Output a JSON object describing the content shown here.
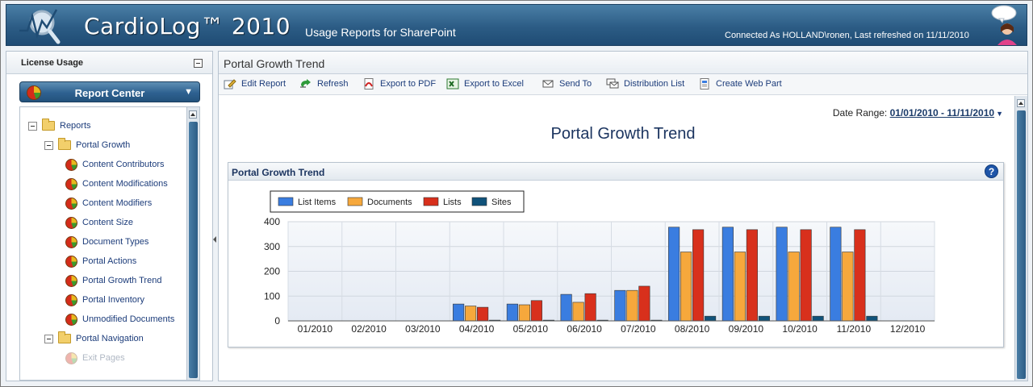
{
  "header": {
    "app_title": "CardioLog™ 2010",
    "subtitle": "Usage Reports for SharePoint",
    "connection": "Connected As HOLLAND\\ronen, Last refreshed on 11/11/2010"
  },
  "sidebar": {
    "license_label": "License Usage",
    "report_center_label": "Report Center",
    "tree": [
      {
        "label": "Reports",
        "type": "folder",
        "level": 0
      },
      {
        "label": "Portal Growth",
        "type": "folder",
        "level": 1
      },
      {
        "label": "Content Contributors",
        "type": "report",
        "level": 2
      },
      {
        "label": "Content Modifications",
        "type": "report",
        "level": 2
      },
      {
        "label": "Content Modifiers",
        "type": "report",
        "level": 2
      },
      {
        "label": "Content Size",
        "type": "report",
        "level": 2
      },
      {
        "label": "Document Types",
        "type": "report",
        "level": 2
      },
      {
        "label": "Portal Actions",
        "type": "report",
        "level": 2
      },
      {
        "label": "Portal Growth Trend",
        "type": "report",
        "level": 2
      },
      {
        "label": "Portal Inventory",
        "type": "report",
        "level": 2
      },
      {
        "label": "Unmodified Documents",
        "type": "report",
        "level": 2
      },
      {
        "label": "Portal Navigation",
        "type": "folder",
        "level": 1
      },
      {
        "label": "Exit Pages",
        "type": "report",
        "level": 2,
        "faded": true
      }
    ]
  },
  "main": {
    "panel_title": "Portal Growth Trend",
    "toolbar": [
      {
        "label": "Edit Report",
        "icon": "edit-report-icon"
      },
      {
        "label": "Refresh",
        "icon": "refresh-icon"
      },
      {
        "label": "Export to PDF",
        "icon": "pdf-icon"
      },
      {
        "label": "Export to Excel",
        "icon": "excel-icon"
      },
      {
        "label": "Send To",
        "icon": "envelope-icon"
      },
      {
        "label": "Distribution List",
        "icon": "distribution-list-icon"
      },
      {
        "label": "Create Web Part",
        "icon": "web-part-icon"
      }
    ],
    "date_range_label": "Date Range:",
    "date_range_value": "01/01/2010 - 11/11/2010",
    "report_title": "Portal Growth Trend",
    "chart_panel_title": "Portal Growth Trend"
  },
  "colors": {
    "header": "#2c5c85",
    "list_items": "#3a7de0",
    "documents": "#f6a83c",
    "lists": "#d8301c",
    "sites": "#10527a"
  },
  "chart_data": {
    "type": "bar",
    "categories": [
      "01/2010",
      "02/2010",
      "03/2010",
      "04/2010",
      "05/2010",
      "06/2010",
      "07/2010",
      "08/2010",
      "09/2010",
      "10/2010",
      "11/2010",
      "12/2010"
    ],
    "series": [
      {
        "name": "List Items",
        "values": [
          0,
          0,
          0,
          68,
          68,
          107,
          123,
          378,
          378,
          378,
          378,
          0
        ]
      },
      {
        "name": "Documents",
        "values": [
          0,
          0,
          0,
          60,
          65,
          75,
          123,
          278,
          278,
          278,
          278,
          0
        ]
      },
      {
        "name": "Lists",
        "values": [
          0,
          0,
          0,
          55,
          82,
          110,
          140,
          368,
          368,
          368,
          368,
          0
        ]
      },
      {
        "name": "Sites",
        "values": [
          0,
          0,
          0,
          3,
          3,
          3,
          3,
          19,
          19,
          19,
          19,
          0
        ]
      }
    ],
    "yticks": [
      "0",
      "100",
      "200",
      "300",
      "400"
    ],
    "ylim": [
      0,
      400
    ],
    "legend": "top-left",
    "grid": true
  }
}
